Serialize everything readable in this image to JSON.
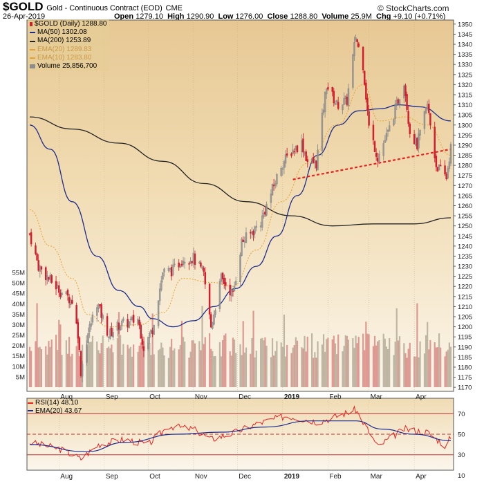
{
  "header": {
    "symbol": "$GOLD",
    "name": "Gold - Continuous Contract (EOD)",
    "exchange": "CME",
    "date": "26-Apr-2019",
    "brand": "© StockCharts.com",
    "open_label": "Open",
    "open": "1279.10",
    "high_label": "High",
    "high": "1290.90",
    "low_label": "Low",
    "low": "1276.00",
    "close_label": "Close",
    "close": "1288.80",
    "volume_label": "Volume",
    "volume": "25.9M",
    "chg_label": "Chg",
    "chg": "+9.10 (+0.71%)"
  },
  "legend": {
    "symbol_line": "$GOLD (Daily) 1288.80",
    "ma50": "MA(50) 1302.08",
    "ma200": "MA(200) 1253.89",
    "ema20": "EMA(20) 1289.83",
    "ema10": "EMA(10) 1283.80",
    "volume": "Volume 25,856,700"
  },
  "rsi_legend": {
    "rsi": "RSI(14) 48.10",
    "ema": "EMA(20) 43.67"
  },
  "colors": {
    "background": "#ffffff",
    "plot_bg_top": "#e7c894",
    "plot_bg_bottom": "#fbf6ec",
    "up": "#8c8c8c",
    "down": "#d21e2e",
    "ma50": "#1b2b8f",
    "ma200": "#222222",
    "ema": "#e8a030",
    "trendline": "#e82020",
    "rsi": "#e82020",
    "rsi_ema": "#1b2b8f",
    "rsi_band": "#c03030"
  },
  "chart_data": [
    {
      "type": "candlestick",
      "title": "$GOLD (Daily)",
      "x_labels": [
        "Aug",
        "Sep",
        "Oct",
        "Nov",
        "Dec",
        "2019",
        "Feb",
        "Mar",
        "Apr"
      ],
      "y_ticks": [
        1170,
        1175,
        1180,
        1185,
        1190,
        1195,
        1200,
        1205,
        1210,
        1215,
        1220,
        1225,
        1230,
        1235,
        1240,
        1245,
        1250,
        1255,
        1260,
        1265,
        1270,
        1275,
        1280,
        1285,
        1290,
        1295,
        1300,
        1305,
        1310,
        1315,
        1320,
        1325,
        1330,
        1335,
        1340,
        1345,
        1350
      ],
      "ylim": [
        1168,
        1352
      ],
      "close_path": [
        {
          "date": "2018-07-12",
          "close": 1246
        },
        {
          "date": "2018-07-18",
          "close": 1230
        },
        {
          "date": "2018-07-26",
          "close": 1223
        },
        {
          "date": "2018-08-03",
          "close": 1217
        },
        {
          "date": "2018-08-10",
          "close": 1213
        },
        {
          "date": "2018-08-14",
          "close": 1197
        },
        {
          "date": "2018-08-16",
          "close": 1178
        },
        {
          "date": "2018-08-21",
          "close": 1197
        },
        {
          "date": "2018-08-27",
          "close": 1212
        },
        {
          "date": "2018-09-04",
          "close": 1196
        },
        {
          "date": "2018-09-11",
          "close": 1201
        },
        {
          "date": "2018-09-18",
          "close": 1202
        },
        {
          "date": "2018-09-24",
          "close": 1204
        },
        {
          "date": "2018-09-28",
          "close": 1190
        },
        {
          "date": "2018-10-04",
          "close": 1199
        },
        {
          "date": "2018-10-11",
          "close": 1227
        },
        {
          "date": "2018-10-18",
          "close": 1228
        },
        {
          "date": "2018-10-25",
          "close": 1234
        },
        {
          "date": "2018-11-01",
          "close": 1234
        },
        {
          "date": "2018-11-08",
          "close": 1226
        },
        {
          "date": "2018-11-13",
          "close": 1200
        },
        {
          "date": "2018-11-20",
          "close": 1224
        },
        {
          "date": "2018-11-28",
          "close": 1216
        },
        {
          "date": "2018-12-04",
          "close": 1242
        },
        {
          "date": "2018-12-10",
          "close": 1246
        },
        {
          "date": "2018-12-17",
          "close": 1252
        },
        {
          "date": "2018-12-24",
          "close": 1266
        },
        {
          "date": "2018-12-31",
          "close": 1280
        },
        {
          "date": "2019-01-07",
          "close": 1287
        },
        {
          "date": "2019-01-14",
          "close": 1291
        },
        {
          "date": "2019-01-18",
          "close": 1282
        },
        {
          "date": "2019-01-24",
          "close": 1281
        },
        {
          "date": "2019-01-31",
          "close": 1320
        },
        {
          "date": "2019-02-07",
          "close": 1310
        },
        {
          "date": "2019-02-14",
          "close": 1312
        },
        {
          "date": "2019-02-20",
          "close": 1344
        },
        {
          "date": "2019-02-25",
          "close": 1330
        },
        {
          "date": "2019-03-01",
          "close": 1299
        },
        {
          "date": "2019-03-07",
          "close": 1284
        },
        {
          "date": "2019-03-14",
          "close": 1296
        },
        {
          "date": "2019-03-20",
          "close": 1310
        },
        {
          "date": "2019-03-25",
          "close": 1322
        },
        {
          "date": "2019-03-29",
          "close": 1297
        },
        {
          "date": "2019-04-03",
          "close": 1290
        },
        {
          "date": "2019-04-10",
          "close": 1310
        },
        {
          "date": "2019-04-16",
          "close": 1280
        },
        {
          "date": "2019-04-23",
          "close": 1274
        },
        {
          "date": "2019-04-26",
          "close": 1288.8
        }
      ],
      "ma50": [
        {
          "date": "2018-07-12",
          "value": 1300
        },
        {
          "date": "2018-07-26",
          "value": 1288
        },
        {
          "date": "2018-08-10",
          "value": 1262
        },
        {
          "date": "2018-08-27",
          "value": 1235
        },
        {
          "date": "2018-09-11",
          "value": 1218
        },
        {
          "date": "2018-09-25",
          "value": 1210
        },
        {
          "date": "2018-10-04",
          "value": 1204
        },
        {
          "date": "2018-10-18",
          "value": 1200
        },
        {
          "date": "2018-11-01",
          "value": 1203
        },
        {
          "date": "2018-11-15",
          "value": 1210
        },
        {
          "date": "2018-11-30",
          "value": 1219
        },
        {
          "date": "2018-12-14",
          "value": 1230
        },
        {
          "date": "2018-12-28",
          "value": 1245
        },
        {
          "date": "2019-01-11",
          "value": 1265
        },
        {
          "date": "2019-01-25",
          "value": 1285
        },
        {
          "date": "2019-02-08",
          "value": 1300
        },
        {
          "date": "2019-02-22",
          "value": 1307
        },
        {
          "date": "2019-03-08",
          "value": 1308
        },
        {
          "date": "2019-03-22",
          "value": 1310
        },
        {
          "date": "2019-04-05",
          "value": 1309
        },
        {
          "date": "2019-04-26",
          "value": 1302
        }
      ],
      "ma200": [
        {
          "date": "2018-07-12",
          "value": 1304
        },
        {
          "date": "2018-08-10",
          "value": 1298
        },
        {
          "date": "2018-09-11",
          "value": 1291
        },
        {
          "date": "2018-10-11",
          "value": 1282
        },
        {
          "date": "2018-11-08",
          "value": 1271
        },
        {
          "date": "2018-12-07",
          "value": 1262
        },
        {
          "date": "2019-01-07",
          "value": 1255
        },
        {
          "date": "2019-02-04",
          "value": 1250
        },
        {
          "date": "2019-03-04",
          "value": 1251
        },
        {
          "date": "2019-04-01",
          "value": 1251
        },
        {
          "date": "2019-04-26",
          "value": 1254
        }
      ],
      "ema20_approx": [
        {
          "date": "2018-07-12",
          "value": 1258
        },
        {
          "date": "2018-07-26",
          "value": 1240
        },
        {
          "date": "2018-08-10",
          "value": 1224
        },
        {
          "date": "2018-08-21",
          "value": 1206
        },
        {
          "date": "2018-09-04",
          "value": 1200
        },
        {
          "date": "2018-09-25",
          "value": 1201
        },
        {
          "date": "2018-10-11",
          "value": 1207
        },
        {
          "date": "2018-10-25",
          "value": 1224
        },
        {
          "date": "2018-11-13",
          "value": 1222
        },
        {
          "date": "2018-11-28",
          "value": 1220
        },
        {
          "date": "2018-12-14",
          "value": 1238
        },
        {
          "date": "2018-12-31",
          "value": 1262
        },
        {
          "date": "2019-01-18",
          "value": 1281
        },
        {
          "date": "2019-02-07",
          "value": 1300
        },
        {
          "date": "2019-02-25",
          "value": 1320
        },
        {
          "date": "2019-03-08",
          "value": 1302
        },
        {
          "date": "2019-03-25",
          "value": 1304
        },
        {
          "date": "2019-04-10",
          "value": 1300
        },
        {
          "date": "2019-04-26",
          "value": 1285
        }
      ],
      "trendline": [
        {
          "date": "2019-01-08",
          "value": 1273
        },
        {
          "date": "2019-04-26",
          "value": 1288
        }
      ]
    },
    {
      "type": "bar",
      "title": "Volume",
      "y_ticks_labels": [
        "5M",
        "10M",
        "15M",
        "20M",
        "25M",
        "30M",
        "35M",
        "40M",
        "45M",
        "50M",
        "55M"
      ],
      "ylim": [
        0,
        58
      ],
      "unit": "M"
    },
    {
      "type": "line",
      "title": "RSI(14)",
      "ylim": [
        15,
        85
      ],
      "y_ticks": [
        10,
        30,
        50,
        70
      ],
      "bands": [
        30,
        70
      ],
      "midline": 50,
      "rsi": [
        {
          "date": "2018-07-12",
          "value": 42
        },
        {
          "date": "2018-08-01",
          "value": 36
        },
        {
          "date": "2018-08-16",
          "value": 26
        },
        {
          "date": "2018-08-28",
          "value": 40
        },
        {
          "date": "2018-09-15",
          "value": 45
        },
        {
          "date": "2018-10-01",
          "value": 40
        },
        {
          "date": "2018-10-15",
          "value": 58
        },
        {
          "date": "2018-11-01",
          "value": 55
        },
        {
          "date": "2018-11-13",
          "value": 45
        },
        {
          "date": "2018-11-28",
          "value": 51
        },
        {
          "date": "2018-12-14",
          "value": 60
        },
        {
          "date": "2019-01-04",
          "value": 68
        },
        {
          "date": "2019-01-25",
          "value": 62
        },
        {
          "date": "2019-02-04",
          "value": 66
        },
        {
          "date": "2019-02-20",
          "value": 74
        },
        {
          "date": "2019-03-07",
          "value": 38
        },
        {
          "date": "2019-03-25",
          "value": 55
        },
        {
          "date": "2019-04-10",
          "value": 52
        },
        {
          "date": "2019-04-23",
          "value": 38
        },
        {
          "date": "2019-04-26",
          "value": 48.1
        }
      ],
      "ema20": [
        {
          "date": "2018-07-12",
          "value": 40
        },
        {
          "date": "2018-08-20",
          "value": 33
        },
        {
          "date": "2018-09-15",
          "value": 42
        },
        {
          "date": "2018-10-20",
          "value": 50
        },
        {
          "date": "2018-11-20",
          "value": 52
        },
        {
          "date": "2018-12-20",
          "value": 57
        },
        {
          "date": "2019-01-20",
          "value": 63
        },
        {
          "date": "2019-02-20",
          "value": 63
        },
        {
          "date": "2019-03-10",
          "value": 55
        },
        {
          "date": "2019-04-01",
          "value": 50
        },
        {
          "date": "2019-04-26",
          "value": 43.67
        }
      ]
    }
  ]
}
